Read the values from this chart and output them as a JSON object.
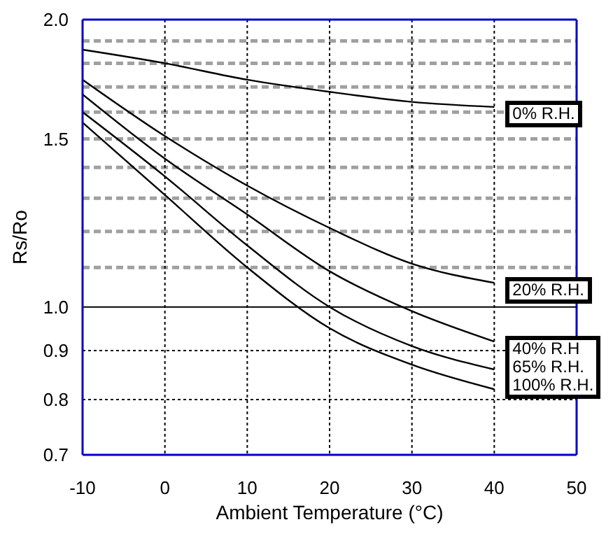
{
  "chart_data": {
    "type": "line",
    "xlabel": "Ambient Temperature (°C)",
    "ylabel": "Rs/Ro",
    "x": [
      -10,
      0,
      10,
      20,
      30,
      40
    ],
    "series": [
      {
        "name": "0% R.H.",
        "color": "#000000",
        "values": [
          1.86,
          1.8,
          1.73,
          1.68,
          1.64,
          1.62
        ]
      },
      {
        "name": "20% R.H.",
        "color": "#000000",
        "values": [
          1.73,
          1.51,
          1.34,
          1.21,
          1.11,
          1.06
        ]
      },
      {
        "name": "40% R.H",
        "color": "#000000",
        "values": [
          1.67,
          1.43,
          1.25,
          1.09,
          0.99,
          0.92
        ]
      },
      {
        "name": "65% R.H.",
        "color": "#000000",
        "values": [
          1.6,
          1.37,
          1.16,
          1.0,
          0.91,
          0.86
        ]
      },
      {
        "name": "100% R.H.",
        "color": "#000000",
        "values": [
          1.56,
          1.31,
          1.1,
          0.95,
          0.87,
          0.82
        ]
      }
    ],
    "xlim": [
      -10,
      50
    ],
    "xticks": [
      -10,
      0,
      10,
      20,
      30,
      40,
      50
    ],
    "ylim": [
      0.7,
      2.0
    ],
    "log": "y",
    "yticks": [
      {
        "value": 0.7,
        "label": "0.7"
      },
      {
        "value": 0.8,
        "label": "0.8"
      },
      {
        "value": 0.9,
        "label": "0.9"
      },
      {
        "value": 1.0,
        "label": "1.0"
      },
      {
        "value": 1.1,
        "label": null
      },
      {
        "value": 1.2,
        "label": null
      },
      {
        "value": 1.3,
        "label": null
      },
      {
        "value": 1.4,
        "label": null
      },
      {
        "value": 1.5,
        "label": "1.5"
      },
      {
        "value": 1.6,
        "label": null
      },
      {
        "value": 1.7,
        "label": null
      },
      {
        "value": 1.8,
        "label": null
      },
      {
        "value": 1.9,
        "label": null
      },
      {
        "value": 2.0,
        "label": "2.0"
      }
    ],
    "ref_lines": [
      {
        "axis": "y",
        "value": 1.0,
        "color": "#000000",
        "line_style": "solid"
      }
    ],
    "grid": true,
    "legend": "right",
    "marker": "none",
    "line_style": "solid"
  }
}
